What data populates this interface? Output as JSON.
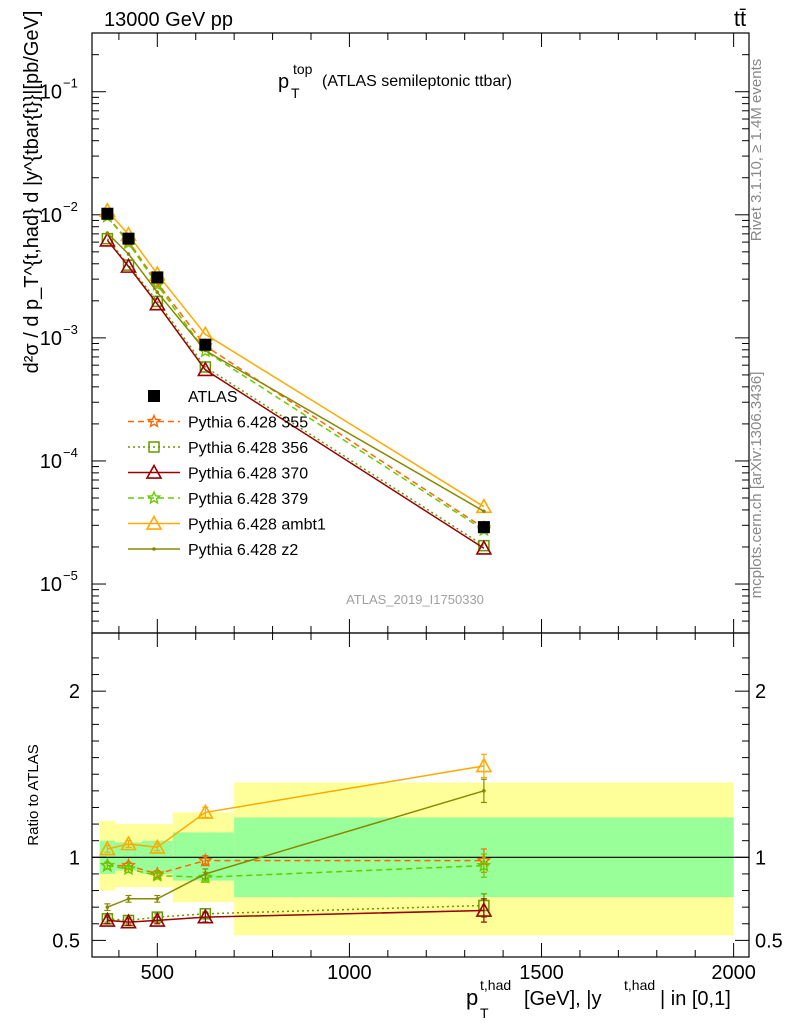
{
  "header": {
    "energy_label": "13000 GeV pp",
    "process_label": "tt̄"
  },
  "side_labels": {
    "rivet": "Rivet 3.1.10, ≥ 1.4M events",
    "mcplots": "mcplots.cern.ch [arXiv:1306.3436]"
  },
  "watermark": "ATLAS_2019_I1750330",
  "chart_data": [
    {
      "type": "line",
      "panel": "main",
      "title": "p_T^top (ATLAS semileptonic ttbar)",
      "title_parts": {
        "base": "p",
        "sup": "top",
        "sub": "T",
        "rest": "(ATLAS semileptonic ttbar)"
      },
      "ylabel": "d²σ / d p_T^{t,had} d |y^{tbar{t}}|[pb/GeV]",
      "yscale": "log",
      "ylim": [
        4e-06,
        0.3
      ],
      "xlim": [
        330,
        2040
      ],
      "yticks": [
        {
          "v": 0.1,
          "label": "10",
          "exp": "−1"
        },
        {
          "v": 0.01,
          "label": "10",
          "exp": "−2"
        },
        {
          "v": 0.001,
          "label": "10",
          "exp": "−3"
        },
        {
          "v": 0.0001,
          "label": "10",
          "exp": "−4"
        },
        {
          "v": 1e-05,
          "label": "10",
          "exp": "−5"
        }
      ],
      "x": [
        370,
        425,
        500,
        625,
        1350
      ],
      "data": {
        "name": "ATLAS",
        "values": [
          0.0102,
          0.0064,
          0.0031,
          0.00088,
          2.9e-05
        ]
      },
      "series": [
        {
          "name": "Pythia 6.428 355",
          "color": "#ff6600",
          "style": "dashed",
          "marker": "star",
          "values": [
            0.0097,
            0.0061,
            0.0028,
            0.00086,
            2.85e-05
          ]
        },
        {
          "name": "Pythia 6.428 356",
          "color": "#669900",
          "style": "dotted",
          "marker": "open-square",
          "values": [
            0.0064,
            0.0039,
            0.00198,
            0.00058,
            2.05e-05
          ]
        },
        {
          "name": "Pythia 6.428 370",
          "color": "#990000",
          "style": "solid",
          "marker": "open-triangle",
          "values": [
            0.0062,
            0.0038,
            0.00188,
            0.00055,
            1.95e-05
          ]
        },
        {
          "name": "Pythia 6.428 379",
          "color": "#66cc00",
          "style": "dashed",
          "marker": "star",
          "values": [
            0.0097,
            0.0059,
            0.0027,
            0.00078,
            2.75e-05
          ]
        },
        {
          "name": "Pythia 6.428 ambt1",
          "color": "#ffaa00",
          "style": "solid",
          "marker": "open-triangle",
          "values": [
            0.0108,
            0.0069,
            0.0033,
            0.00107,
            4.25e-05
          ]
        },
        {
          "name": "Pythia 6.428 z2",
          "color": "#888800",
          "style": "solid",
          "marker": "dot",
          "values": [
            0.0071,
            0.0048,
            0.00235,
            0.00079,
            3.9e-05
          ]
        }
      ],
      "legend_position": "lower-left"
    },
    {
      "type": "line",
      "panel": "ratio",
      "ylabel": "Ratio to ATLAS",
      "ylim": [
        0.4,
        2.35
      ],
      "xlim": [
        330,
        2040
      ],
      "yticks": [
        0.5,
        1,
        2
      ],
      "ytick_labels": [
        "0.5",
        "1",
        "2"
      ],
      "xticks": [
        500,
        1000,
        1500,
        2000
      ],
      "xtick_labels": [
        "500",
        "1000",
        "1500",
        "2000"
      ],
      "xlabel": "p_T^{t,had} [GeV], |y^{t,had}| in [0,1]",
      "xlabel_parts": {
        "base": "p",
        "sup": "t,had",
        "sub": "T",
        "unit": "[GeV], |y",
        "sup2": "t,had",
        "rest": "| in [0,1]"
      },
      "bands": [
        {
          "x0": 350,
          "x1": 390,
          "inner": [
            0.9,
            1.1
          ],
          "outer": [
            0.8,
            1.22
          ]
        },
        {
          "x0": 390,
          "x1": 460,
          "inner": [
            0.92,
            1.09
          ],
          "outer": [
            0.82,
            1.2
          ]
        },
        {
          "x0": 460,
          "x1": 540,
          "inner": [
            0.9,
            1.1
          ],
          "outer": [
            0.82,
            1.2
          ]
        },
        {
          "x0": 540,
          "x1": 700,
          "inner": [
            0.86,
            1.15
          ],
          "outer": [
            0.73,
            1.27
          ]
        },
        {
          "x0": 700,
          "x1": 2000,
          "inner": [
            0.76,
            1.24
          ],
          "outer": [
            0.53,
            1.45
          ]
        }
      ],
      "x": [
        370,
        425,
        500,
        625,
        1350
      ],
      "series": [
        {
          "name": "Pythia 6.428 355",
          "color": "#ff6600",
          "style": "dashed",
          "marker": "star",
          "values": [
            0.95,
            0.95,
            0.9,
            0.98,
            0.98
          ]
        },
        {
          "name": "Pythia 6.428 356",
          "color": "#669900",
          "style": "dotted",
          "marker": "open-square",
          "values": [
            0.63,
            0.62,
            0.64,
            0.66,
            0.71
          ]
        },
        {
          "name": "Pythia 6.428 370",
          "color": "#990000",
          "style": "solid",
          "marker": "open-triangle",
          "values": [
            0.62,
            0.61,
            0.62,
            0.64,
            0.68
          ]
        },
        {
          "name": "Pythia 6.428 379",
          "color": "#66cc00",
          "style": "dashed",
          "marker": "star",
          "values": [
            0.95,
            0.93,
            0.89,
            0.88,
            0.95
          ]
        },
        {
          "name": "Pythia 6.428 ambt1",
          "color": "#ffaa00",
          "style": "solid",
          "marker": "open-triangle",
          "values": [
            1.05,
            1.08,
            1.06,
            1.27,
            1.55
          ]
        },
        {
          "name": "Pythia 6.428 z2",
          "color": "#888800",
          "style": "solid",
          "marker": "dot",
          "values": [
            0.7,
            0.75,
            0.75,
            0.9,
            1.4
          ]
        }
      ],
      "errors": [
        0.02,
        0.02,
        0.02,
        0.03,
        0.07
      ]
    }
  ]
}
